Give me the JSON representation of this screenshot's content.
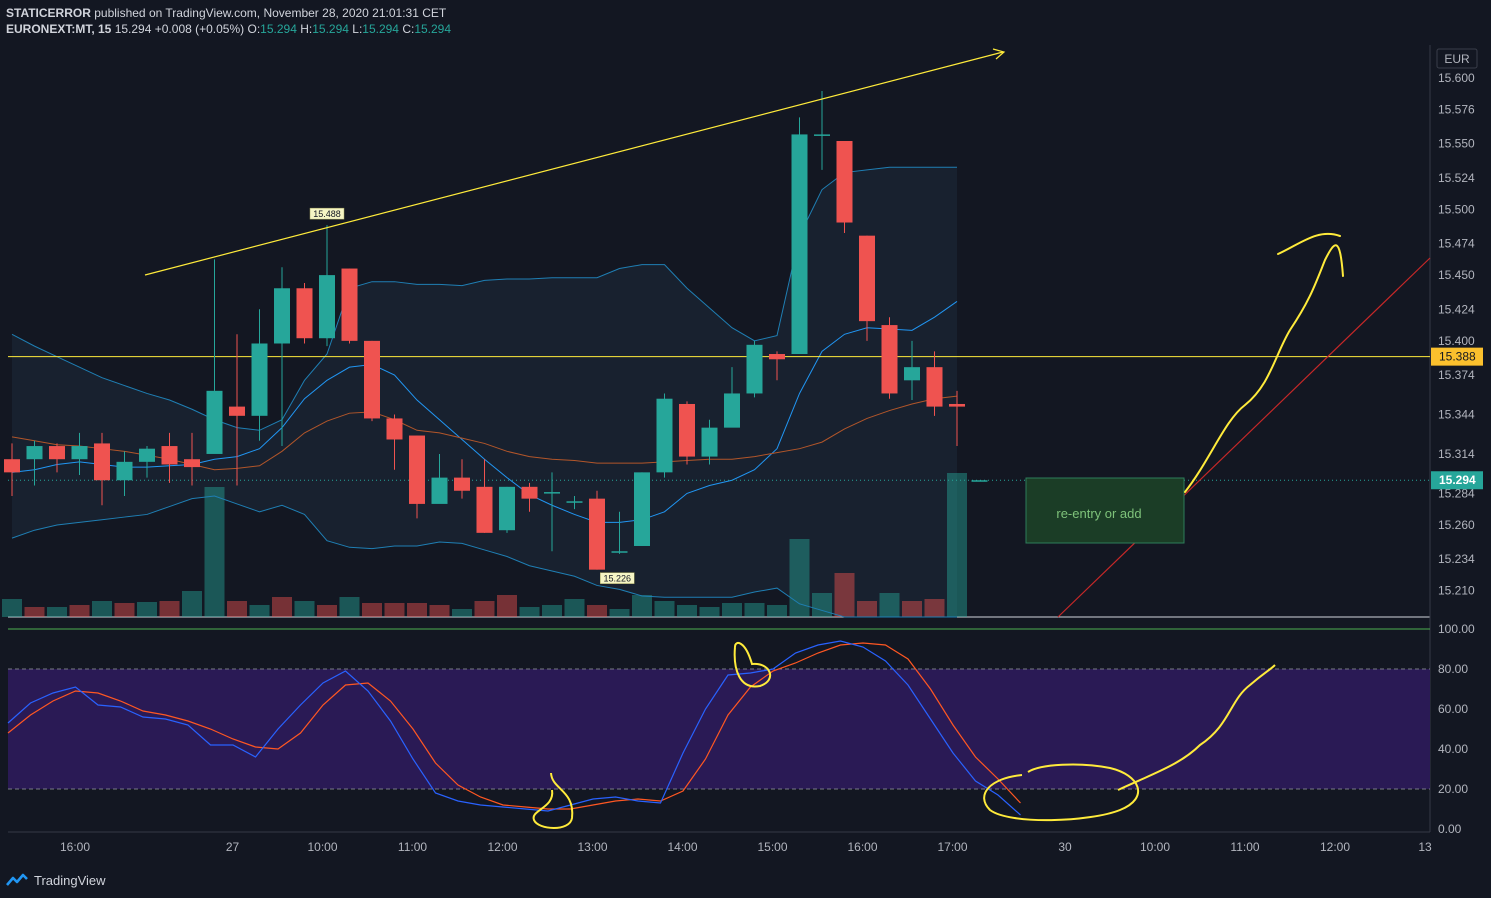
{
  "header": {
    "author": "STATICERROR",
    "published_text": "published on TradingView.com, November 28, 2020 21:01:31 CET",
    "symbol": "EURONEXT:MT, 15",
    "last": "15.294",
    "change": "+0.008 (+0.05%)",
    "o_label": "O:",
    "o_value": "15.294",
    "h_label": "H:",
    "h_value": "15.294",
    "l_label": "L:",
    "l_value": "15.294",
    "c_label": "C:",
    "c_value": "15.294"
  },
  "footer": {
    "brand": "TradingView",
    "logo_icon": "tradingview-logo-icon"
  },
  "colors": {
    "background": "#131722",
    "up": "#26a69a",
    "down": "#ef5350",
    "bb": "#2196f3",
    "ma": "#ff6d00",
    "stoch_k": "#2962ff",
    "stoch_d": "#ff5722",
    "hline": "#ffeb3b",
    "annot": "#ffeb3b",
    "red_line": "#e91e1e",
    "stoch_band": "#2a1a55",
    "box": "#1b3d26"
  },
  "chart_data": [
    {
      "type": "candlestick",
      "currency": "EUR",
      "price_ylim": [
        15.19,
        15.625
      ],
      "price_ticks": [
        "15.600",
        "15.576",
        "15.550",
        "15.524",
        "15.500",
        "15.474",
        "15.450",
        "15.424",
        "15.400",
        "15.374",
        "15.344",
        "15.314",
        "15.284",
        "15.260",
        "15.234",
        "15.210"
      ],
      "time_ticks": [
        {
          "t": 2.8,
          "label": "16:00"
        },
        {
          "t": 9.8,
          "label": "27"
        },
        {
          "t": 13.8,
          "label": "10:00"
        },
        {
          "t": 17.8,
          "label": "11:00"
        },
        {
          "t": 21.8,
          "label": "12:00"
        },
        {
          "t": 25.8,
          "label": "13:00"
        },
        {
          "t": 29.8,
          "label": "14:00"
        },
        {
          "t": 33.8,
          "label": "15:00"
        },
        {
          "t": 37.8,
          "label": "16:00"
        },
        {
          "t": 41.8,
          "label": "17:00"
        },
        {
          "t": 46.8,
          "label": "30"
        },
        {
          "t": 50.8,
          "label": "10:00"
        },
        {
          "t": 54.8,
          "label": "11:00"
        },
        {
          "t": 58.8,
          "label": "12:00"
        },
        {
          "t": 62.8,
          "label": "13"
        }
      ],
      "candles": [
        [
          15.31,
          15.3,
          15.322,
          15.282
        ],
        [
          15.31,
          15.32,
          15.324,
          15.29
        ],
        [
          15.32,
          15.31,
          15.322,
          15.3
        ],
        [
          15.31,
          15.32,
          15.33,
          15.298
        ],
        [
          15.322,
          15.294,
          15.33,
          15.275
        ],
        [
          15.294,
          15.308,
          15.316,
          15.282
        ],
        [
          15.308,
          15.318,
          15.32,
          15.296
        ],
        [
          15.32,
          15.306,
          15.33,
          15.292
        ],
        [
          15.31,
          15.304,
          15.33,
          15.29
        ],
        [
          15.314,
          15.362,
          15.462,
          15.362
        ],
        [
          15.35,
          15.343,
          15.405,
          15.29
        ],
        [
          15.343,
          15.398,
          15.424,
          15.324
        ],
        [
          15.398,
          15.44,
          15.456,
          15.32
        ],
        [
          15.44,
          15.402,
          15.444,
          15.398
        ],
        [
          15.402,
          15.45,
          15.488,
          15.396
        ],
        [
          15.455,
          15.4,
          15.455,
          15.398
        ],
        [
          15.4,
          15.341,
          15.4,
          15.339
        ],
        [
          15.341,
          15.325,
          15.344,
          15.302
        ],
        [
          15.328,
          15.276,
          15.328,
          15.265
        ],
        [
          15.276,
          15.296,
          15.314,
          15.28
        ],
        [
          15.296,
          15.286,
          15.31,
          15.28
        ],
        [
          15.289,
          15.254,
          15.31,
          15.254
        ],
        [
          15.256,
          15.289,
          15.289,
          15.254
        ],
        [
          15.289,
          15.28,
          15.292,
          15.27
        ],
        [
          15.285,
          15.285,
          15.3,
          15.24
        ],
        [
          15.278,
          15.278,
          15.282,
          15.272
        ],
        [
          15.28,
          15.226,
          15.286,
          15.226
        ],
        [
          15.24,
          15.24,
          15.27,
          15.238
        ],
        [
          15.244,
          15.3,
          15.3,
          15.244
        ],
        [
          15.3,
          15.356,
          15.36,
          15.296
        ],
        [
          15.352,
          15.312,
          15.354,
          15.306
        ],
        [
          15.312,
          15.334,
          15.34,
          15.306
        ],
        [
          15.334,
          15.36,
          15.38,
          15.335
        ],
        [
          15.36,
          15.397,
          15.4,
          15.357
        ],
        [
          15.39,
          15.386,
          15.392,
          15.37
        ],
        [
          15.39,
          15.557,
          15.57,
          15.39
        ],
        [
          15.557,
          15.557,
          15.59,
          15.53
        ],
        [
          15.552,
          15.49,
          15.552,
          15.482
        ],
        [
          15.48,
          15.415,
          15.48,
          15.4
        ],
        [
          15.412,
          15.36,
          15.418,
          15.356
        ],
        [
          15.37,
          15.38,
          15.4,
          15.355
        ],
        [
          15.38,
          15.35,
          15.392,
          15.343
        ],
        [
          15.352,
          15.35,
          15.362,
          15.32
        ],
        [
          15.294,
          15.294,
          15.294,
          15.294
        ]
      ],
      "volume": [
        [
          0,
          18
        ],
        [
          1,
          10
        ],
        [
          0,
          10
        ],
        [
          1,
          12
        ],
        [
          0,
          16
        ],
        [
          1,
          14
        ],
        [
          0,
          15
        ],
        [
          1,
          16
        ],
        [
          0,
          26
        ],
        [
          0,
          130
        ],
        [
          1,
          16
        ],
        [
          0,
          12
        ],
        [
          1,
          20
        ],
        [
          0,
          16
        ],
        [
          1,
          12
        ],
        [
          0,
          20
        ],
        [
          1,
          14
        ],
        [
          1,
          14
        ],
        [
          1,
          14
        ],
        [
          1,
          12
        ],
        [
          0,
          8
        ],
        [
          1,
          16
        ],
        [
          1,
          22
        ],
        [
          0,
          10
        ],
        [
          0,
          12
        ],
        [
          0,
          18
        ],
        [
          1,
          12
        ],
        [
          0,
          8
        ],
        [
          0,
          22
        ],
        [
          0,
          16
        ],
        [
          0,
          12
        ],
        [
          0,
          10
        ],
        [
          0,
          14
        ],
        [
          0,
          14
        ],
        [
          0,
          12
        ],
        [
          0,
          78
        ],
        [
          0,
          24
        ],
        [
          1,
          44
        ],
        [
          1,
          16
        ],
        [
          0,
          24
        ],
        [
          1,
          16
        ],
        [
          1,
          18
        ],
        [
          0,
          144
        ]
      ],
      "bb_upper": [
        15.405,
        15.396,
        15.388,
        15.38,
        15.372,
        15.366,
        15.36,
        15.355,
        15.348,
        15.34,
        15.334,
        15.332,
        15.34,
        15.37,
        15.39,
        15.44,
        15.445,
        15.445,
        15.443,
        15.443,
        15.442,
        15.446,
        15.447,
        15.447,
        15.448,
        15.448,
        15.448,
        15.455,
        15.458,
        15.458,
        15.44,
        15.425,
        15.41,
        15.4,
        15.404,
        15.48,
        15.515,
        15.528,
        15.53,
        15.532,
        15.532,
        15.532,
        15.532
      ],
      "bb_mid": [
        15.3,
        15.302,
        15.306,
        15.308,
        15.306,
        15.304,
        15.304,
        15.305,
        15.306,
        15.31,
        15.312,
        15.318,
        15.334,
        15.356,
        15.37,
        15.38,
        15.382,
        15.374,
        15.355,
        15.34,
        15.325,
        15.31,
        15.296,
        15.283,
        15.275,
        15.268,
        15.262,
        15.262,
        15.264,
        15.27,
        15.284,
        15.29,
        15.294,
        15.302,
        15.318,
        15.36,
        15.392,
        15.405,
        15.41,
        15.409,
        15.408,
        15.418,
        15.43
      ],
      "bb_lower": [
        15.25,
        15.256,
        15.26,
        15.262,
        15.264,
        15.266,
        15.268,
        15.274,
        15.28,
        15.282,
        15.276,
        15.27,
        15.275,
        15.268,
        15.248,
        15.243,
        15.242,
        15.244,
        15.244,
        15.247,
        15.246,
        15.241,
        15.236,
        15.229,
        15.225,
        15.221,
        15.214,
        15.211,
        15.206,
        15.205,
        15.205,
        15.205,
        15.205,
        15.209,
        15.212,
        15.2,
        15.195,
        15.19,
        15.19,
        15.19,
        15.19,
        15.19,
        15.19
      ],
      "ma": [
        15.327,
        15.324,
        15.321,
        15.32,
        15.318,
        15.316,
        15.313,
        15.31,
        15.306,
        15.302,
        15.303,
        15.305,
        15.316,
        15.33,
        15.339,
        15.345,
        15.346,
        15.34,
        15.332,
        15.33,
        15.326,
        15.322,
        15.316,
        15.312,
        15.31,
        15.309,
        15.307,
        15.307,
        15.307,
        15.308,
        15.309,
        15.31,
        15.31,
        15.312,
        15.315,
        15.318,
        15.323,
        15.333,
        15.341,
        15.347,
        15.352,
        15.356,
        15.358
      ],
      "hline_price": 15.388,
      "hline_label": "15.388",
      "last_price": 15.294,
      "last_label": "15.294",
      "high_marker": {
        "t": 14,
        "price": 15.488,
        "label": "15.488"
      },
      "low_marker": {
        "t": 26.9,
        "price": 15.226,
        "label": "15.226"
      },
      "box_text": "re-entry or add"
    },
    {
      "type": "line",
      "name": "stochastic",
      "ylim": [
        0,
        100
      ],
      "ticks": [
        "100.00",
        "80.00",
        "60.00",
        "40.00",
        "20.00",
        "0.00"
      ],
      "band": [
        20,
        80
      ],
      "k": [
        53,
        63,
        68,
        71,
        62,
        61,
        56,
        55,
        52,
        42,
        42,
        36,
        50,
        62,
        73,
        79,
        69,
        54,
        35,
        18,
        14,
        12,
        11,
        10,
        9,
        12,
        15,
        16,
        14,
        13,
        38,
        60,
        77,
        78,
        80,
        88,
        92,
        94,
        91,
        84,
        72,
        55,
        38,
        24,
        17,
        7
      ],
      "d": [
        48,
        57,
        64,
        69,
        68,
        64,
        59,
        57,
        54,
        50,
        45,
        41,
        40,
        48,
        62,
        72,
        73,
        64,
        50,
        33,
        22,
        16,
        12,
        11,
        10,
        10,
        12,
        14,
        15,
        14,
        19,
        35,
        57,
        71,
        79,
        83,
        88,
        92,
        93,
        92,
        85,
        70,
        52,
        36,
        25,
        13
      ]
    }
  ]
}
